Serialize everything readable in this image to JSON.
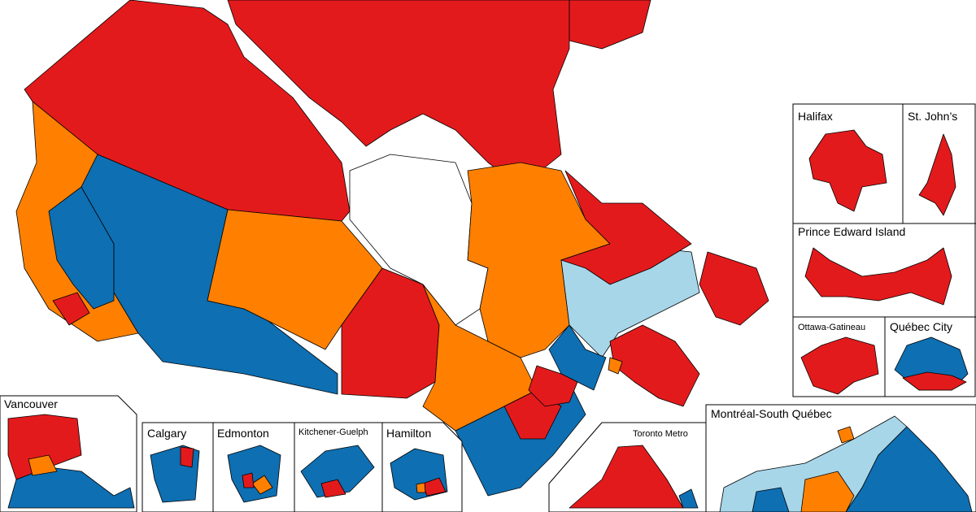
{
  "insets": [
    {
      "label": "Vancouver"
    },
    {
      "label": "Calgary"
    },
    {
      "label": "Edmonton"
    },
    {
      "label": "Kitchener-Guelph"
    },
    {
      "label": "Hamilton"
    },
    {
      "label": "Toronto Metro"
    },
    {
      "label": "Montréal-South Québec"
    },
    {
      "label": "Halifax"
    },
    {
      "label": "St. John’s"
    },
    {
      "label": "Prince Edward Island"
    },
    {
      "label": "Ottawa-Gatineau"
    },
    {
      "label": "Québec City"
    }
  ]
}
